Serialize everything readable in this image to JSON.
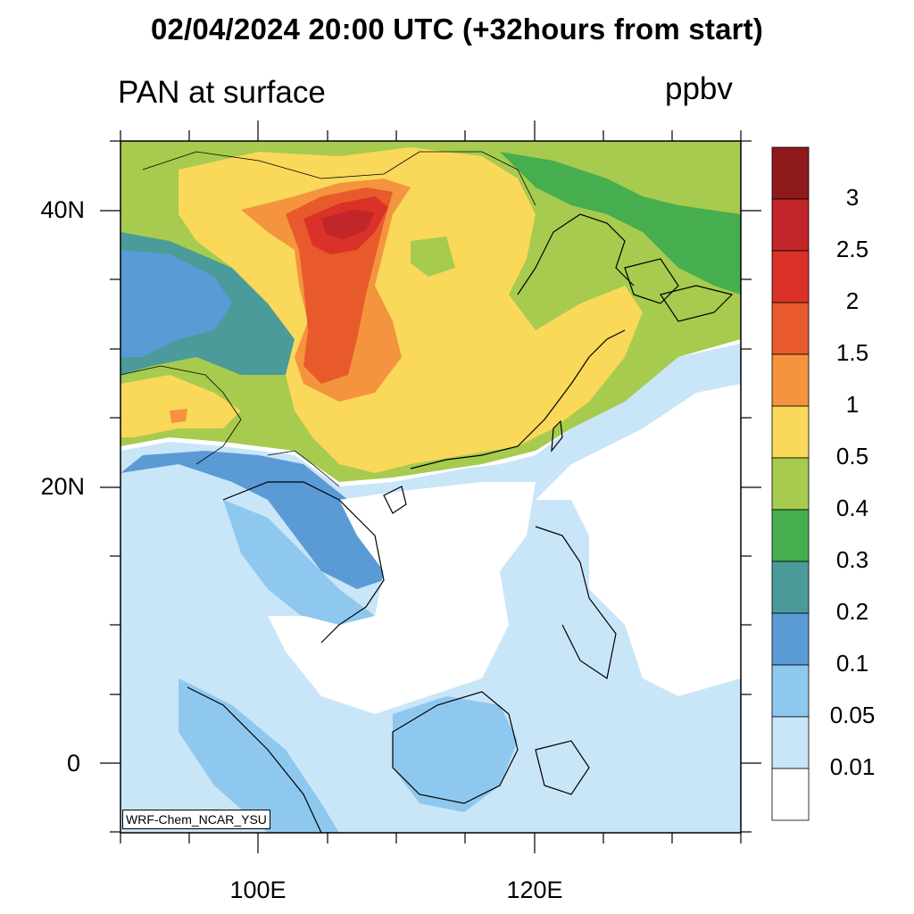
{
  "title": "02/04/2024 20:00 UTC (+32hours from start)",
  "subtitle": "PAN at surface",
  "units": "ppbv",
  "credit": "WRF-Chem_NCAR_YSU",
  "map": {
    "lat_labels": [
      "40N",
      "20N",
      "0"
    ],
    "lon_labels": [
      "100E",
      "120E"
    ]
  },
  "colorbar": {
    "labels": [
      "3",
      "2.5",
      "2",
      "1.5",
      "1",
      "0.5",
      "0.4",
      "0.3",
      "0.2",
      "0.1",
      "0.05",
      "0.01"
    ],
    "colors": [
      "#8e1a1b",
      "#c2252a",
      "#da3128",
      "#e85a2b",
      "#f5943e",
      "#f9d85a",
      "#a6cb4e",
      "#47ae4f",
      "#4a9b9a",
      "#5a9bd6",
      "#8ec8ef",
      "#c9e5f8",
      "#ffffff"
    ]
  }
}
